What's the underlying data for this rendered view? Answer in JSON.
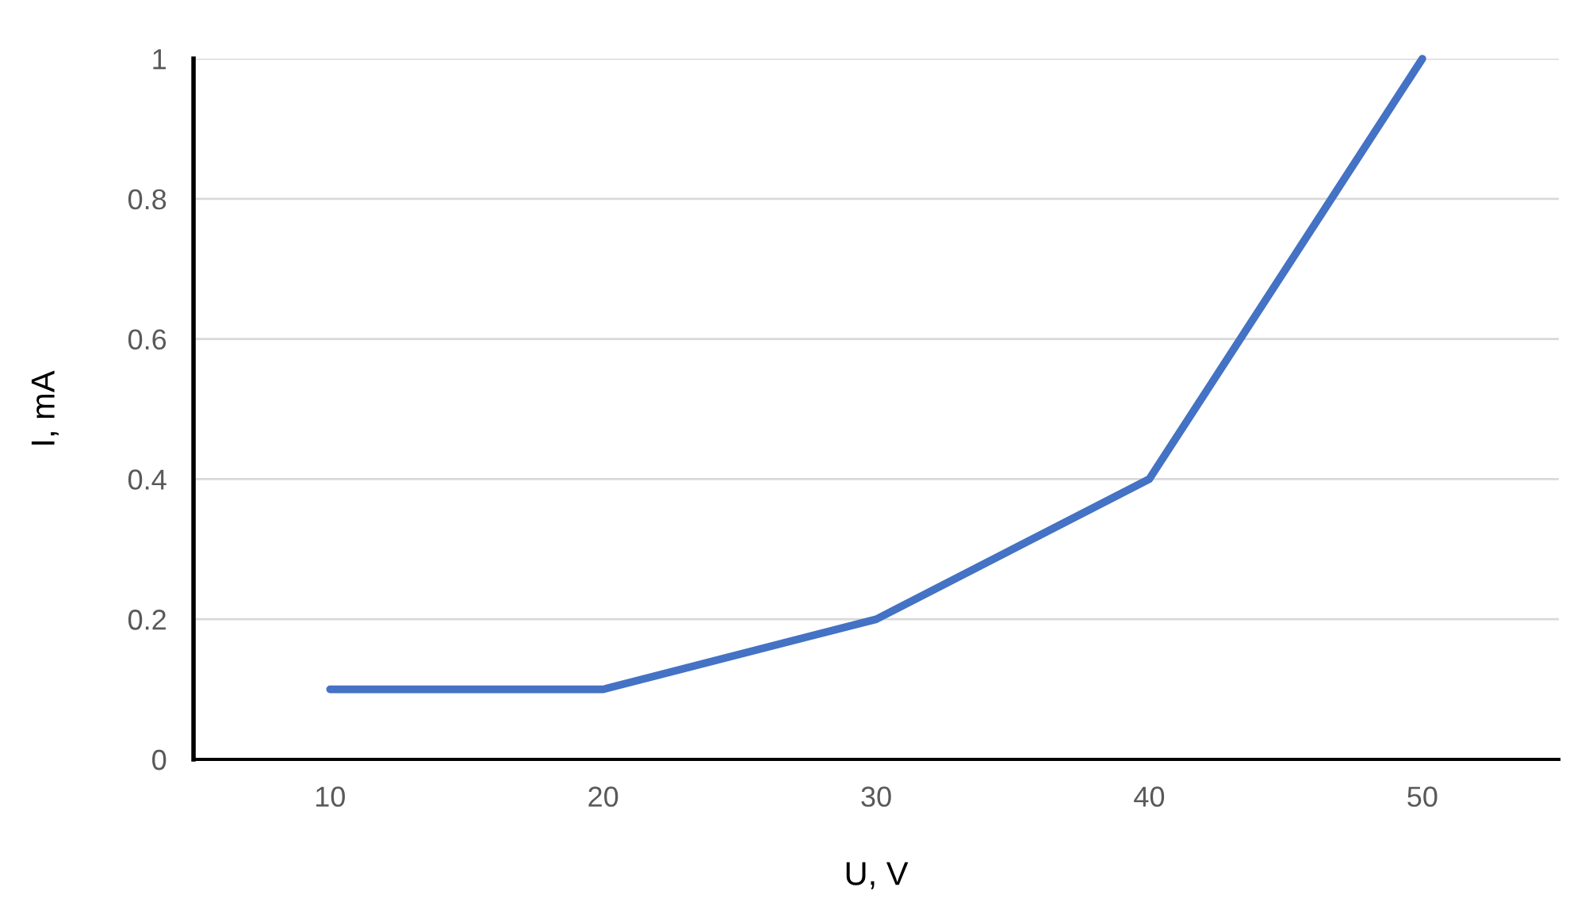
{
  "chart_data": {
    "type": "line",
    "xlabel": "U, V",
    "ylabel": "I, mA",
    "categories": [
      "10",
      "20",
      "30",
      "40",
      "50"
    ],
    "series": [
      {
        "color": "#4472c4",
        "values": [
          0.1,
          0.1,
          0.2,
          0.4,
          1
        ]
      }
    ],
    "ylim": [
      0,
      1
    ],
    "yticks": [
      0,
      0.2,
      0.4,
      0.6,
      0.8,
      1
    ],
    "grid": "y",
    "legend": false,
    "marker": "none",
    "line_style": "solid"
  }
}
